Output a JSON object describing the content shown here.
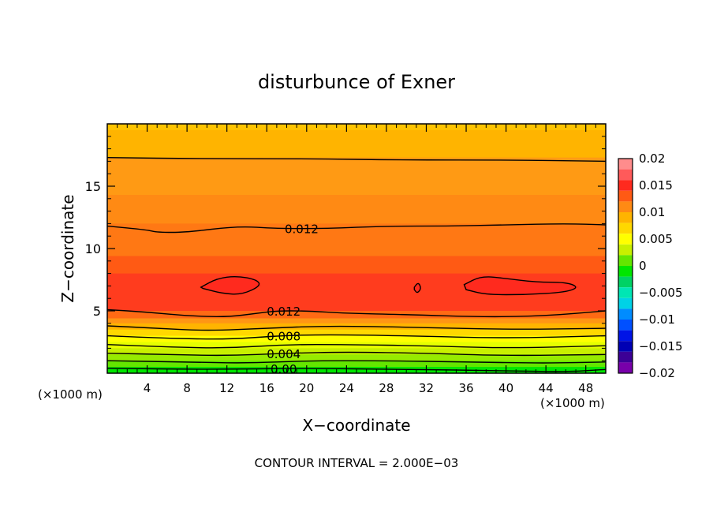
{
  "chart_data": {
    "type": "contour",
    "title": "disturbunce of Exner",
    "xlabel": "X−coordinate",
    "ylabel": "Z−coordinate",
    "x_unit_left": "(×1000 m)",
    "x_unit_right": "(×1000 m)",
    "footer": "CONTOUR INTERVAL = 2.000E−03",
    "xlim": [
      0,
      50
    ],
    "ylim": [
      0,
      20
    ],
    "x_ticks": [
      {
        "value": 4,
        "label": "4"
      },
      {
        "value": 8,
        "label": "8"
      },
      {
        "value": 12,
        "label": "12"
      },
      {
        "value": 16,
        "label": "16"
      },
      {
        "value": 20,
        "label": "20"
      },
      {
        "value": 24,
        "label": "24"
      },
      {
        "value": 28,
        "label": "28"
      },
      {
        "value": 32,
        "label": "32"
      },
      {
        "value": 36,
        "label": "36"
      },
      {
        "value": 40,
        "label": "40"
      },
      {
        "value": 44,
        "label": "44"
      },
      {
        "value": 48,
        "label": "48"
      }
    ],
    "y_ticks": [
      {
        "value": 5,
        "label": "5"
      },
      {
        "value": 10,
        "label": "10"
      },
      {
        "value": 15,
        "label": "15"
      }
    ],
    "colorbar": {
      "range": [
        -0.02,
        0.02
      ],
      "ticks": [
        {
          "value": 0.02,
          "label": "0.02"
        },
        {
          "value": 0.015,
          "label": "0.015"
        },
        {
          "value": 0.01,
          "label": "0.01"
        },
        {
          "value": 0.005,
          "label": "0.005"
        },
        {
          "value": 0,
          "label": "0"
        },
        {
          "value": -0.005,
          "label": "−0.005"
        },
        {
          "value": -0.01,
          "label": "−0.01"
        },
        {
          "value": -0.015,
          "label": "−0.015"
        },
        {
          "value": -0.02,
          "label": "−0.02"
        }
      ],
      "bands": [
        {
          "lo": 0.018,
          "hi": 0.02,
          "color": "#ff8c8c"
        },
        {
          "lo": 0.016,
          "hi": 0.018,
          "color": "#ff5a5a"
        },
        {
          "lo": 0.014,
          "hi": 0.016,
          "color": "#ff2a1e"
        },
        {
          "lo": 0.012,
          "hi": 0.014,
          "color": "#ff5a14"
        },
        {
          "lo": 0.01,
          "hi": 0.012,
          "color": "#ff8a14"
        },
        {
          "lo": 0.008,
          "hi": 0.01,
          "color": "#ffb400"
        },
        {
          "lo": 0.006,
          "hi": 0.008,
          "color": "#ffd800"
        },
        {
          "lo": 0.004,
          "hi": 0.006,
          "color": "#ffff00"
        },
        {
          "lo": 0.002,
          "hi": 0.004,
          "color": "#c8f000"
        },
        {
          "lo": 0.0,
          "hi": 0.002,
          "color": "#64e600"
        },
        {
          "lo": -0.002,
          "hi": 0.0,
          "color": "#00e600"
        },
        {
          "lo": -0.004,
          "hi": -0.002,
          "color": "#00d264"
        },
        {
          "lo": -0.006,
          "hi": -0.004,
          "color": "#00e6b4"
        },
        {
          "lo": -0.008,
          "hi": -0.006,
          "color": "#00d2e6"
        },
        {
          "lo": -0.01,
          "hi": -0.008,
          "color": "#008cff"
        },
        {
          "lo": -0.012,
          "hi": -0.01,
          "color": "#0050ff"
        },
        {
          "lo": -0.014,
          "hi": -0.012,
          "color": "#0014e6"
        },
        {
          "lo": -0.016,
          "hi": -0.014,
          "color": "#0000b4"
        },
        {
          "lo": -0.018,
          "hi": -0.016,
          "color": "#3c0096"
        },
        {
          "lo": -0.02,
          "hi": -0.018,
          "color": "#7800aa"
        }
      ]
    },
    "filled_bands_plot": [
      {
        "z": 19.5,
        "color": "#ffb400"
      },
      {
        "z": 17.3,
        "color": "#ff9a14"
      },
      {
        "z": 14.3,
        "color": "#ff8a14"
      },
      {
        "z": 12.0,
        "color": "#ff7814"
      },
      {
        "z": 9.4,
        "color": "#ff5a14"
      },
      {
        "z": 8.0,
        "color": "#ff3c1e"
      },
      {
        "z": 5.0,
        "color": "#ff6a14"
      },
      {
        "z": 4.4,
        "color": "#ff9614"
      },
      {
        "z": 4.0,
        "color": "#ffb400"
      },
      {
        "z": 3.5,
        "color": "#ffd800"
      },
      {
        "z": 3.0,
        "color": "#ffff00"
      },
      {
        "z": 2.5,
        "color": "#e6ff00"
      },
      {
        "z": 2.0,
        "color": "#c8f000"
      },
      {
        "z": 1.5,
        "color": "#96eb00"
      },
      {
        "z": 1.0,
        "color": "#64e600"
      },
      {
        "z": 0.5,
        "color": "#00e600"
      }
    ],
    "contour_lines": [
      {
        "label": "",
        "points": [
          [
            0,
            17.3
          ],
          [
            10,
            17.2
          ],
          [
            20,
            17.2
          ],
          [
            30,
            17.1
          ],
          [
            40,
            17.1
          ],
          [
            50,
            17.0
          ]
        ]
      },
      {
        "label": "0.012",
        "label_x": 19.5,
        "points": [
          [
            0,
            11.8
          ],
          [
            4,
            11.5
          ],
          [
            5,
            11.3
          ],
          [
            8,
            11.3
          ],
          [
            13,
            11.8
          ],
          [
            17,
            11.6
          ],
          [
            22,
            11.6
          ],
          [
            28,
            11.8
          ],
          [
            34,
            11.8
          ],
          [
            40,
            11.9
          ],
          [
            46,
            12.0
          ],
          [
            50,
            11.9
          ]
        ]
      },
      {
        "label": "",
        "closed": true,
        "points": [
          [
            9.4,
            6.9
          ],
          [
            11,
            7.6
          ],
          [
            13,
            7.8
          ],
          [
            15,
            7.5
          ],
          [
            15.4,
            7.0
          ],
          [
            13.5,
            6.3
          ],
          [
            11.5,
            6.4
          ],
          [
            9.6,
            6.8
          ]
        ]
      },
      {
        "label": "",
        "closed": true,
        "points": [
          [
            30.8,
            6.9
          ],
          [
            31.2,
            7.3
          ],
          [
            31.5,
            6.8
          ],
          [
            31.1,
            6.4
          ],
          [
            30.8,
            6.7
          ]
        ]
      },
      {
        "label": "",
        "closed": true,
        "points": [
          [
            35.8,
            7.1
          ],
          [
            37.5,
            7.8
          ],
          [
            40,
            7.6
          ],
          [
            43,
            7.3
          ],
          [
            46,
            7.3
          ],
          [
            47.3,
            6.9
          ],
          [
            46,
            6.5
          ],
          [
            42,
            6.3
          ],
          [
            38,
            6.3
          ],
          [
            36,
            6.7
          ]
        ]
      },
      {
        "label": "0.012",
        "label_x": 17.7,
        "points": [
          [
            0,
            5.1
          ],
          [
            4,
            4.9
          ],
          [
            8,
            4.6
          ],
          [
            12,
            4.5
          ],
          [
            15,
            4.8
          ],
          [
            17,
            5.0
          ],
          [
            20,
            5.0
          ],
          [
            24,
            4.8
          ],
          [
            30,
            4.7
          ],
          [
            38,
            4.5
          ],
          [
            44,
            4.6
          ],
          [
            50,
            5.0
          ]
        ]
      },
      {
        "label": "",
        "points": [
          [
            0,
            3.8
          ],
          [
            5,
            3.6
          ],
          [
            10,
            3.4
          ],
          [
            16,
            3.6
          ],
          [
            22,
            3.8
          ],
          [
            30,
            3.7
          ],
          [
            40,
            3.5
          ],
          [
            50,
            3.6
          ]
        ]
      },
      {
        "label": "0.008",
        "label_x": 17.7,
        "points": [
          [
            0,
            3.0
          ],
          [
            6,
            2.8
          ],
          [
            12,
            2.7
          ],
          [
            17,
            3.0
          ],
          [
            22,
            3.1
          ],
          [
            30,
            3.0
          ],
          [
            40,
            2.8
          ],
          [
            50,
            3.0
          ]
        ]
      },
      {
        "label": "",
        "points": [
          [
            0,
            2.3
          ],
          [
            6,
            2.1
          ],
          [
            12,
            2.0
          ],
          [
            18,
            2.3
          ],
          [
            24,
            2.3
          ],
          [
            32,
            2.2
          ],
          [
            40,
            2.0
          ],
          [
            50,
            2.2
          ]
        ]
      },
      {
        "label": "0.004",
        "label_x": 17.7,
        "points": [
          [
            0,
            1.6
          ],
          [
            6,
            1.5
          ],
          [
            12,
            1.4
          ],
          [
            18,
            1.6
          ],
          [
            24,
            1.7
          ],
          [
            32,
            1.6
          ],
          [
            40,
            1.4
          ],
          [
            50,
            1.5
          ]
        ]
      },
      {
        "label": "",
        "points": [
          [
            0,
            1.0
          ],
          [
            8,
            0.9
          ],
          [
            14,
            0.8
          ],
          [
            20,
            1.0
          ],
          [
            28,
            1.0
          ],
          [
            36,
            0.9
          ],
          [
            44,
            0.8
          ],
          [
            50,
            0.9
          ]
        ]
      },
      {
        "label": "0.00",
        "label_x": 17.7,
        "points": [
          [
            0,
            0.4
          ],
          [
            10,
            0.3
          ],
          [
            20,
            0.4
          ],
          [
            30,
            0.3
          ],
          [
            40,
            0.2
          ],
          [
            46,
            0.1
          ],
          [
            50,
            0.3
          ]
        ]
      }
    ],
    "grid": false,
    "legend": "colorbar-right"
  }
}
